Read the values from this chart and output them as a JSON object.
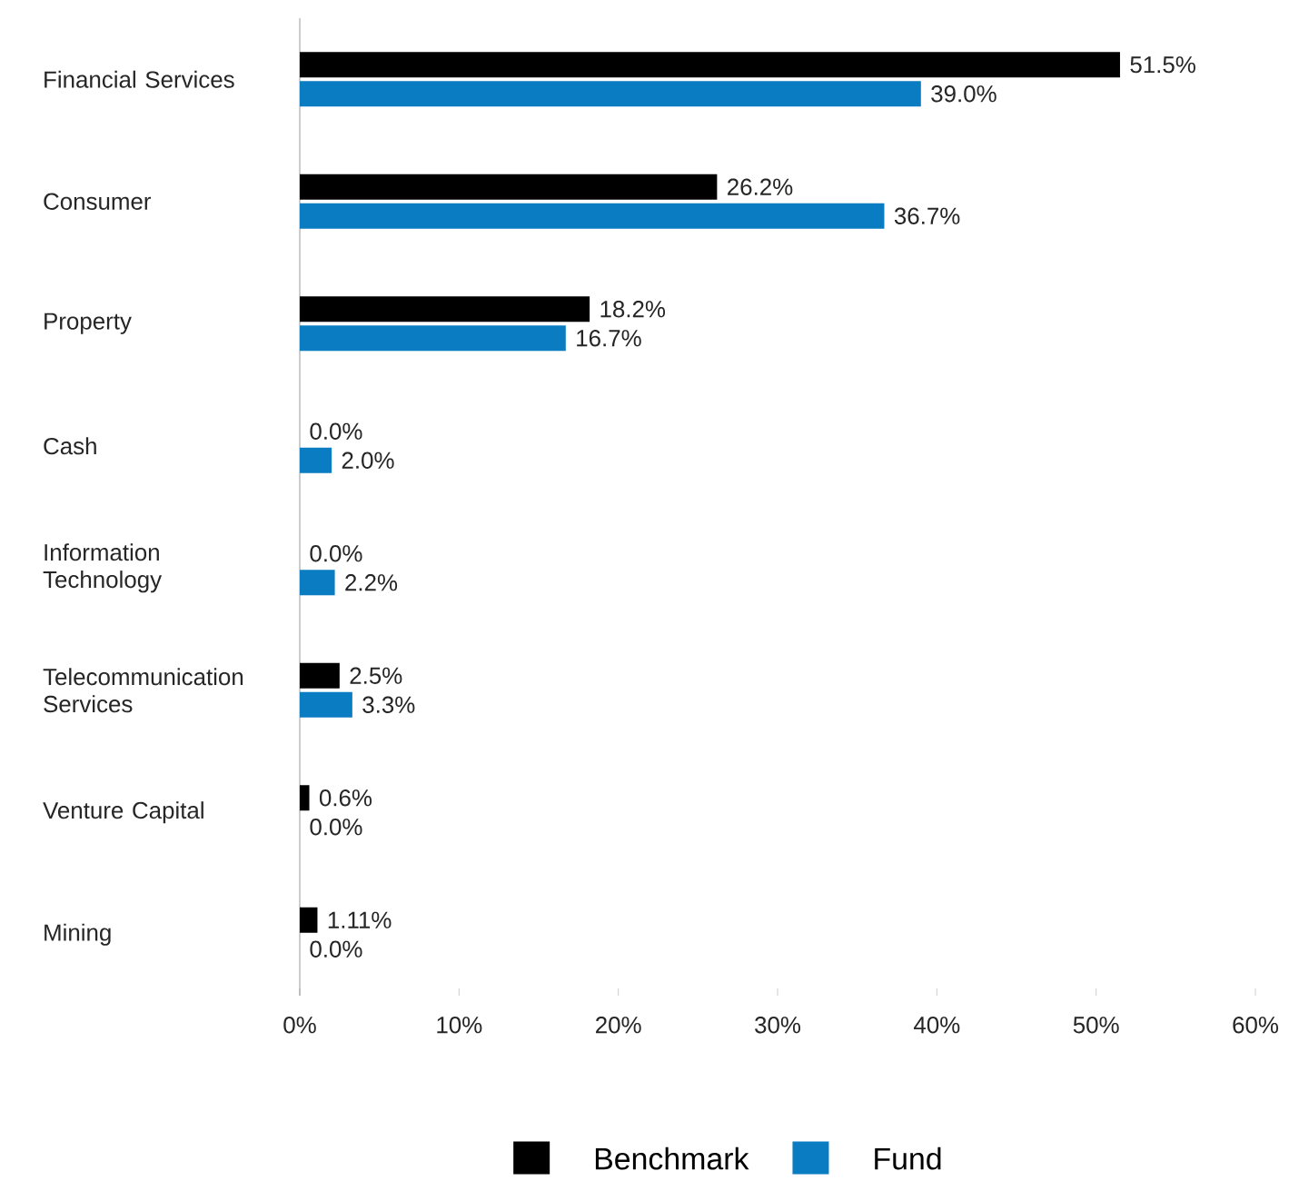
{
  "chart_data": {
    "type": "bar",
    "orientation": "horizontal",
    "categories": [
      "Financial Services",
      "Consumer",
      "Property",
      "Cash",
      "Information Technology",
      "Telecommunication Services",
      "Venture Capital",
      "Mining"
    ],
    "series": [
      {
        "name": "Benchmark",
        "color": "#000000",
        "values": [
          51.5,
          26.2,
          18.2,
          0.0,
          0.0,
          2.5,
          0.6,
          1.11
        ],
        "value_labels": [
          "51.5%",
          "26.2%",
          "18.2%",
          "0.0%",
          "0.0%",
          "2.5%",
          "0.6%",
          "1.11%"
        ]
      },
      {
        "name": "Fund",
        "color": "#0a7cc1",
        "values": [
          39.0,
          36.7,
          16.7,
          2.0,
          2.2,
          3.3,
          0.0,
          0.0
        ],
        "value_labels": [
          "39.0%",
          "36.7%",
          "16.7%",
          "2.0%",
          "2.2%",
          "3.3%",
          "0.0%",
          "0.0%"
        ]
      }
    ],
    "xlim": [
      0,
      60
    ],
    "xticks": [
      {
        "value": 0,
        "label": "0%"
      },
      {
        "value": 10,
        "label": "10%"
      },
      {
        "value": 20,
        "label": "20%"
      },
      {
        "value": 30,
        "label": "30%"
      },
      {
        "value": 40,
        "label": "40%"
      },
      {
        "value": 50,
        "label": "50%"
      },
      {
        "value": 60,
        "label": "60%"
      }
    ],
    "legend": "bottom"
  }
}
